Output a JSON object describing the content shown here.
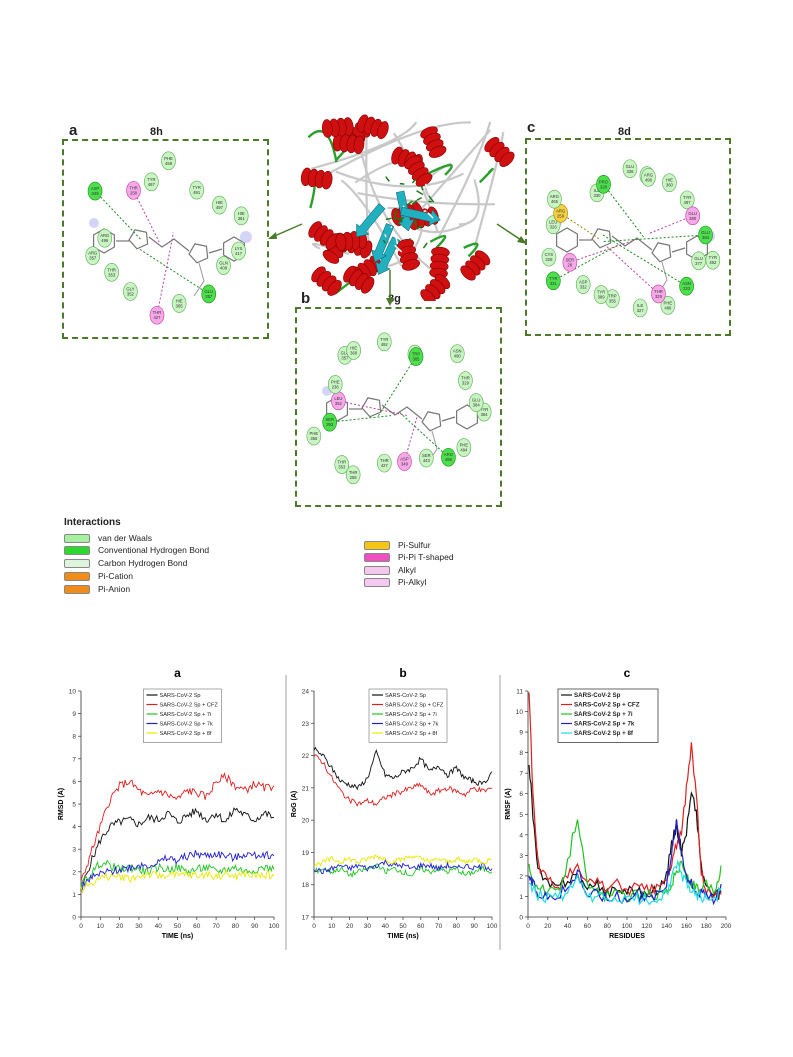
{
  "panels": {
    "a": {
      "label": "a",
      "title": "8h"
    },
    "b": {
      "label": "b",
      "title": "8g"
    },
    "c": {
      "label": "c",
      "title": "8d"
    }
  },
  "interactions": {
    "title": "Interactions",
    "items": [
      {
        "label": "van der Waals",
        "color": "#a6f0a0"
      },
      {
        "label": "Conventional Hydrogen Bond",
        "color": "#2ed82e"
      },
      {
        "label": "Carbon Hydrogen Bond",
        "color": "#dcf5dc"
      },
      {
        "label": "Pi-Cation",
        "color": "#f08c1a"
      },
      {
        "label": "Pi-Anion",
        "color": "#f08c1a"
      },
      {
        "label": "Pi-Sulfur",
        "color": "#f5c518"
      },
      {
        "label": "Pi-Pi T-shaped",
        "color": "#f04fc0"
      },
      {
        "label": "Alkyl",
        "color": "#f5c8f0"
      },
      {
        "label": "Pi-Alkyl",
        "color": "#f5c8f0"
      }
    ]
  },
  "residues": {
    "a": [
      "LYS 417",
      "GLN 409",
      "GLU 357",
      "HIE 365",
      "THR 427",
      "GLY 352",
      "THR 353",
      "ARG 357",
      "ARG 496",
      "ASP 349",
      "THR 258",
      "TYR 467",
      "PHE 459",
      "TYR 491",
      "HIE 497",
      "HIE 361"
    ],
    "b": [
      "TYR 384",
      "PHE 494",
      "ARG 496",
      "SER 443",
      "ASP 349",
      "THR 427",
      "THR 258",
      "THR 353",
      "PHE 356",
      "SER 393",
      "LEU 352",
      "PHE 236",
      "GLU 357",
      "HIE 360",
      "TYR 492",
      "ASP 493",
      "TRP 385",
      "ASN 490",
      "THR 329",
      "GLU 384"
    ],
    "c": [
      "TYR 492",
      "GLU 377",
      "ASN 333",
      "PHE 486",
      "THR 329",
      "ILE 327",
      "TRP 355",
      "TYR 389",
      "ASP 332",
      "TYR 331",
      "SER 26",
      "CYS 328",
      "LEU 326",
      "ARG 259",
      "ARG 465",
      "ILE 330",
      "PRO 328",
      "GLU 336",
      "PHE 22",
      "ARG 496",
      "HIE 360",
      "TYR 497",
      "GLU 380",
      "GLU 384"
    ]
  },
  "chart_data": [
    {
      "type": "line",
      "panel_label": "a",
      "xlabel": "TIME (ns)",
      "ylabel": "RMSD (A)",
      "xlim": [
        0,
        100
      ],
      "ylim": [
        0,
        10
      ],
      "xticks": [
        0,
        10,
        20,
        30,
        40,
        50,
        60,
        70,
        80,
        90,
        100
      ],
      "yticks": [
        0,
        1,
        2,
        3,
        4,
        5,
        6,
        7,
        8,
        9,
        10
      ],
      "legend_position": "top-center",
      "series": [
        {
          "name": "SARS-CoV-2 Sp",
          "color": "#111111",
          "x": [
            0,
            5,
            10,
            15,
            20,
            25,
            30,
            35,
            40,
            45,
            50,
            55,
            60,
            65,
            70,
            75,
            80,
            85,
            90,
            95,
            100
          ],
          "values": [
            1.2,
            2.4,
            3.4,
            4.0,
            4.2,
            4.3,
            4.1,
            4.4,
            4.3,
            4.6,
            4.2,
            4.5,
            4.7,
            4.3,
            4.6,
            4.2,
            4.8,
            4.5,
            4.3,
            4.6,
            4.4
          ]
        },
        {
          "name": "SARS-CoV-2 Sp + CFZ",
          "color": "#e02020",
          "x": [
            0,
            5,
            10,
            15,
            20,
            25,
            30,
            35,
            40,
            45,
            50,
            55,
            60,
            65,
            70,
            75,
            80,
            85,
            90,
            95,
            100
          ],
          "values": [
            1.5,
            2.8,
            4.0,
            5.2,
            5.8,
            6.0,
            5.6,
            5.3,
            5.6,
            5.4,
            5.2,
            5.6,
            5.5,
            5.3,
            6.0,
            6.2,
            5.8,
            5.6,
            5.9,
            5.7,
            5.8
          ]
        },
        {
          "name": "SARS-CoV-2 Sp + 7i",
          "color": "#22c422",
          "x": [
            0,
            5,
            10,
            15,
            20,
            25,
            30,
            35,
            40,
            45,
            50,
            55,
            60,
            65,
            70,
            75,
            80,
            85,
            90,
            95,
            100
          ],
          "values": [
            1.4,
            1.9,
            2.4,
            2.3,
            2.1,
            2.2,
            2.1,
            2.0,
            2.2,
            2.1,
            2.2,
            2.0,
            2.1,
            2.2,
            2.0,
            2.1,
            2.2,
            2.0,
            2.1,
            2.2,
            2.1
          ]
        },
        {
          "name": "SARS-CoV-2 Sp + 7k",
          "color": "#2020d0",
          "x": [
            0,
            5,
            10,
            15,
            20,
            25,
            30,
            35,
            40,
            45,
            50,
            55,
            60,
            65,
            70,
            75,
            80,
            85,
            90,
            95,
            100
          ],
          "values": [
            1.3,
            1.7,
            1.9,
            2.0,
            2.1,
            2.2,
            2.3,
            2.3,
            2.4,
            2.6,
            2.5,
            2.7,
            2.8,
            2.7,
            2.8,
            2.7,
            2.6,
            2.8,
            2.7,
            2.8,
            2.7
          ]
        },
        {
          "name": "SARS-CoV-2 Sp + 8f",
          "color": "#e8e800",
          "x": [
            0,
            5,
            10,
            15,
            20,
            25,
            30,
            35,
            40,
            45,
            50,
            55,
            60,
            65,
            70,
            75,
            80,
            85,
            90,
            95,
            100
          ],
          "values": [
            1.2,
            1.5,
            1.7,
            1.8,
            1.8,
            1.7,
            1.8,
            1.9,
            1.8,
            1.9,
            1.8,
            1.9,
            1.8,
            1.9,
            1.8,
            1.9,
            1.8,
            1.9,
            1.8,
            1.9,
            1.8
          ]
        }
      ]
    },
    {
      "type": "line",
      "panel_label": "b",
      "xlabel": "TIME (ns)",
      "ylabel": "RoG (A)",
      "xlim": [
        0,
        100
      ],
      "ylim": [
        17,
        24
      ],
      "xticks": [
        0,
        10,
        20,
        30,
        40,
        50,
        60,
        70,
        80,
        90,
        100
      ],
      "yticks": [
        17,
        18,
        19,
        20,
        21,
        22,
        23,
        24
      ],
      "legend_position": "top-center",
      "series": [
        {
          "name": "SARS-CoV-2 Sp",
          "color": "#111111",
          "x": [
            0,
            5,
            10,
            15,
            20,
            25,
            30,
            35,
            40,
            45,
            50,
            55,
            60,
            65,
            70,
            75,
            80,
            85,
            90,
            95,
            100
          ],
          "values": [
            22.2,
            22.0,
            21.6,
            21.2,
            21.1,
            21.0,
            21.3,
            22.1,
            21.4,
            21.3,
            21.5,
            21.6,
            21.9,
            21.5,
            21.7,
            21.4,
            21.6,
            21.3,
            21.2,
            21.1,
            21.5
          ]
        },
        {
          "name": "SARS-CoV-2 Sp + CFZ",
          "color": "#e02020",
          "x": [
            0,
            5,
            10,
            15,
            20,
            25,
            30,
            35,
            40,
            45,
            50,
            55,
            60,
            65,
            70,
            75,
            80,
            85,
            90,
            95,
            100
          ],
          "values": [
            22.0,
            21.8,
            21.3,
            20.9,
            20.6,
            20.5,
            20.6,
            20.5,
            20.7,
            20.8,
            20.9,
            21.0,
            21.1,
            20.8,
            20.9,
            21.0,
            20.9,
            20.8,
            21.0,
            20.9,
            21.0
          ]
        },
        {
          "name": "SARS-CoV-2 Sp + 7i",
          "color": "#22c422",
          "x": [
            0,
            5,
            10,
            15,
            20,
            25,
            30,
            35,
            40,
            45,
            50,
            55,
            60,
            65,
            70,
            75,
            80,
            85,
            90,
            95,
            100
          ],
          "values": [
            18.4,
            18.5,
            18.4,
            18.5,
            18.3,
            18.4,
            18.5,
            18.6,
            18.4,
            18.5,
            18.4,
            18.3,
            18.5,
            18.4,
            18.5,
            18.4,
            18.5,
            18.3,
            18.4,
            18.5,
            18.4
          ]
        },
        {
          "name": "SARS-CoV-2 Sp + 7k",
          "color": "#2020d0",
          "x": [
            0,
            5,
            10,
            15,
            20,
            25,
            30,
            35,
            40,
            45,
            50,
            55,
            60,
            65,
            70,
            75,
            80,
            85,
            90,
            95,
            100
          ],
          "values": [
            18.5,
            18.4,
            18.5,
            18.6,
            18.5,
            18.6,
            18.5,
            18.6,
            18.7,
            18.6,
            18.6,
            18.5,
            18.6,
            18.6,
            18.5,
            18.6,
            18.5,
            18.6,
            18.5,
            18.6,
            18.5
          ]
        },
        {
          "name": "SARS-CoV-2 Sp + 8f",
          "color": "#e8e800",
          "x": [
            0,
            5,
            10,
            15,
            20,
            25,
            30,
            35,
            40,
            45,
            50,
            55,
            60,
            65,
            70,
            75,
            80,
            85,
            90,
            95,
            100
          ],
          "values": [
            18.6,
            18.7,
            18.8,
            18.7,
            18.8,
            18.7,
            18.8,
            18.9,
            18.8,
            18.7,
            18.8,
            18.9,
            18.8,
            18.7,
            18.8,
            18.7,
            18.8,
            18.7,
            18.8,
            18.7,
            18.8
          ]
        }
      ]
    },
    {
      "type": "line",
      "panel_label": "c",
      "xlabel": "RESIDUES",
      "ylabel": "RMSF (A)",
      "xlim": [
        0,
        200
      ],
      "ylim": [
        0,
        11
      ],
      "xticks": [
        0,
        20,
        40,
        60,
        80,
        100,
        120,
        140,
        160,
        180,
        200
      ],
      "yticks": [
        0,
        1,
        2,
        3,
        4,
        5,
        6,
        7,
        8,
        9,
        10,
        11
      ],
      "legend_position": "top-center",
      "series": [
        {
          "name": "SARS-CoV-2 Sp",
          "color": "#111111",
          "x": [
            1,
            5,
            10,
            20,
            30,
            40,
            50,
            60,
            70,
            80,
            90,
            100,
            110,
            120,
            130,
            140,
            145,
            150,
            155,
            160,
            165,
            170,
            175,
            180,
            190,
            195
          ],
          "values": [
            7.6,
            5.0,
            2.2,
            1.6,
            1.4,
            1.8,
            2.1,
            1.3,
            1.5,
            1.2,
            1.4,
            1.2,
            1.3,
            1.1,
            1.3,
            2.0,
            3.5,
            4.5,
            3.2,
            4.2,
            6.0,
            5.2,
            2.4,
            1.5,
            1.0,
            1.2
          ]
        },
        {
          "name": "SARS-CoV-2 Sp + CFZ",
          "color": "#e02020",
          "x": [
            1,
            5,
            10,
            20,
            30,
            40,
            50,
            60,
            70,
            80,
            90,
            100,
            110,
            120,
            130,
            140,
            145,
            150,
            155,
            160,
            165,
            170,
            175,
            180,
            190,
            195
          ],
          "values": [
            10.8,
            6.0,
            2.6,
            1.8,
            1.5,
            2.0,
            2.4,
            1.6,
            1.8,
            1.4,
            1.6,
            1.3,
            1.5,
            1.3,
            1.4,
            1.8,
            2.5,
            3.6,
            4.0,
            6.2,
            8.3,
            6.0,
            2.2,
            1.4,
            1.0,
            1.1
          ]
        },
        {
          "name": "SARS-CoV-2 Sp + 7i",
          "color": "#22c422",
          "x": [
            1,
            5,
            10,
            20,
            30,
            40,
            50,
            60,
            70,
            80,
            90,
            100,
            110,
            120,
            130,
            140,
            145,
            150,
            155,
            160,
            165,
            170,
            175,
            180,
            190,
            195
          ],
          "values": [
            2.4,
            2.0,
            1.4,
            1.2,
            1.2,
            2.6,
            5.0,
            1.4,
            1.2,
            1.0,
            1.1,
            1.0,
            1.1,
            1.0,
            1.1,
            1.3,
            1.6,
            2.2,
            2.6,
            2.0,
            1.6,
            1.4,
            1.2,
            1.6,
            1.2,
            2.5
          ]
        },
        {
          "name": "SARS-CoV-2 Sp + 7k",
          "color": "#2020d0",
          "x": [
            1,
            5,
            10,
            20,
            30,
            40,
            50,
            60,
            70,
            80,
            90,
            100,
            110,
            120,
            130,
            140,
            145,
            150,
            155,
            160,
            165,
            170,
            175,
            180,
            190,
            195
          ],
          "values": [
            2.0,
            1.6,
            1.2,
            1.0,
            1.1,
            1.4,
            2.2,
            1.1,
            1.2,
            0.9,
            1.0,
            0.9,
            1.0,
            0.9,
            1.1,
            1.6,
            3.0,
            4.9,
            3.0,
            2.0,
            1.6,
            1.3,
            1.1,
            1.0,
            0.9,
            1.6
          ]
        },
        {
          "name": "SARS-CoV-2 Sp + 8f",
          "color": "#22dddd",
          "x": [
            1,
            5,
            10,
            20,
            30,
            40,
            50,
            60,
            70,
            80,
            90,
            100,
            110,
            120,
            130,
            140,
            145,
            150,
            155,
            160,
            165,
            170,
            175,
            180,
            190,
            195
          ],
          "values": [
            1.8,
            1.4,
            1.1,
            0.9,
            1.0,
            1.2,
            1.8,
            1.0,
            1.0,
            0.8,
            0.9,
            0.8,
            0.9,
            0.8,
            0.9,
            1.2,
            1.8,
            2.6,
            2.0,
            1.6,
            1.3,
            1.1,
            1.0,
            0.9,
            0.8,
            1.4
          ]
        }
      ]
    }
  ]
}
